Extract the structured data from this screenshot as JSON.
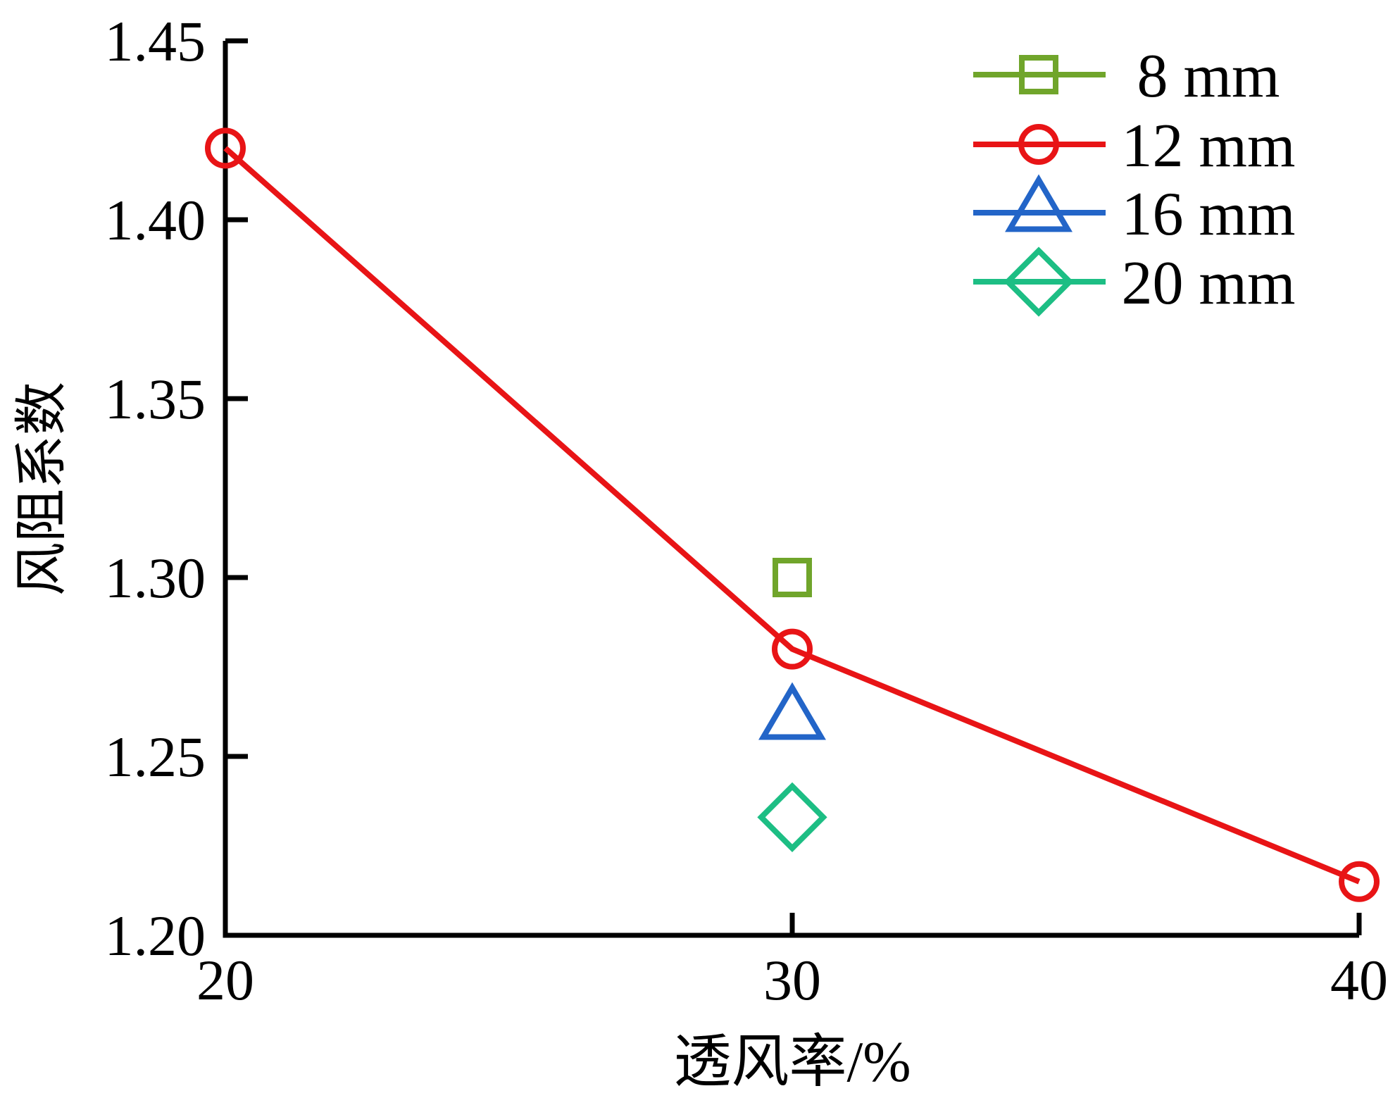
{
  "figure": {
    "background": "#ffffff",
    "axis_color": "#000000",
    "text_color": "#000000"
  },
  "chart_data": {
    "type": "line",
    "title": "",
    "xlabel": "透风率/%",
    "ylabel": "风阻系数",
    "xlim": [
      20,
      40
    ],
    "ylim": [
      1.2,
      1.45
    ],
    "grid": false,
    "legend_position": "upper right",
    "x_ticks": [
      {
        "value": 20,
        "label": "20"
      },
      {
        "value": 30,
        "label": "30"
      },
      {
        "value": 40,
        "label": "40"
      }
    ],
    "y_ticks": [
      {
        "value": 1.2,
        "label": "1.20"
      },
      {
        "value": 1.25,
        "label": "1.25"
      },
      {
        "value": 1.3,
        "label": "1.30"
      },
      {
        "value": 1.35,
        "label": "1.35"
      },
      {
        "value": 1.4,
        "label": "1.40"
      },
      {
        "value": 1.45,
        "label": "1.45"
      }
    ],
    "series": [
      {
        "name": "8 mm",
        "color": "#70a52b",
        "marker": "square",
        "line": false,
        "points": [
          [
            30,
            1.3
          ]
        ]
      },
      {
        "name": "12 mm",
        "color": "#e81416",
        "marker": "circle",
        "line": true,
        "points": [
          [
            20,
            1.42
          ],
          [
            30,
            1.28
          ],
          [
            40,
            1.215
          ]
        ]
      },
      {
        "name": "16 mm",
        "color": "#2365c8",
        "marker": "triangle",
        "line": false,
        "points": [
          [
            30,
            1.26
          ]
        ]
      },
      {
        "name": "20 mm",
        "color": "#1dbe84",
        "marker": "diamond",
        "line": false,
        "points": [
          [
            30,
            1.233
          ]
        ]
      }
    ]
  }
}
